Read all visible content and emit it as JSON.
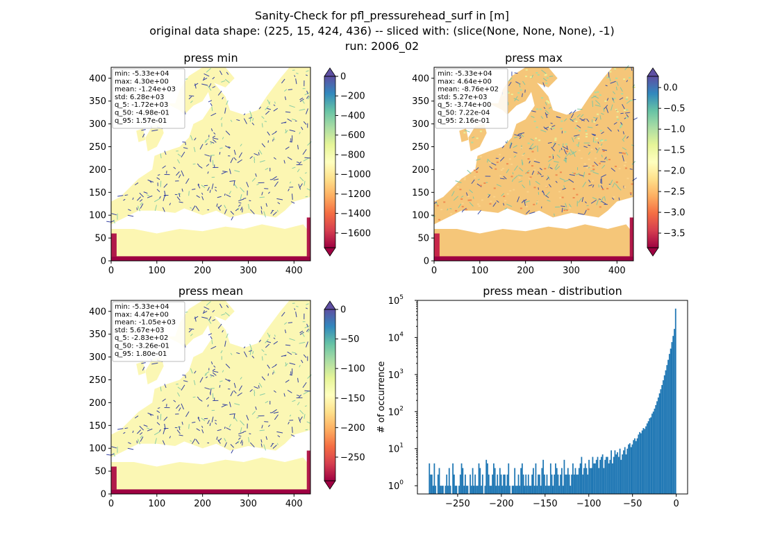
{
  "figure": {
    "title_lines": [
      "Sanity-Check for pfl_pressurehead_surf in [m]",
      "original data shape: (225, 15, 424, 436) -- sliced with: (slice(None, None, None), -1)",
      "run: 2006_02"
    ]
  },
  "chart_data": [
    {
      "type": "heatmap",
      "title": "press min",
      "xlim": [
        0,
        436
      ],
      "ylim": [
        0,
        424
      ],
      "xticks": [
        0,
        100,
        200,
        300,
        400
      ],
      "yticks": [
        0,
        50,
        100,
        150,
        200,
        250,
        300,
        350,
        400
      ],
      "stats": [
        "min: -5.33e+04",
        "max: 4.30e+00",
        "mean: -1.24e+03",
        "std: 6.28e+03",
        "q_5: -1.72e+03",
        "q_50: -4.98e-01",
        "q_95: 1.57e-01"
      ],
      "colorbar": {
        "cmap": "Spectral",
        "vmin": -1750,
        "vmax": 0,
        "ticks": [
          0,
          -200,
          -400,
          -600,
          -800,
          -1000,
          -1200,
          -1400,
          -1600
        ],
        "tick_labels": [
          "0",
          "−200",
          "−400",
          "−600",
          "−800",
          "−1000",
          "−1200",
          "−1400",
          "−1600"
        ],
        "extend": "both"
      }
    },
    {
      "type": "heatmap",
      "title": "press max",
      "xlim": [
        0,
        436
      ],
      "ylim": [
        0,
        424
      ],
      "xticks": [
        0,
        100,
        200,
        300,
        400
      ],
      "yticks": [
        0,
        50,
        100,
        150,
        200,
        250,
        300,
        350,
        400
      ],
      "stats": [
        "min: -5.33e+04",
        "max: 4.64e+00",
        "mean: -8.76e+02",
        "std: 5.27e+03",
        "q_5: -3.74e+00",
        "q_50: 7.22e-04",
        "q_95: 2.16e-01"
      ],
      "colorbar": {
        "cmap": "Spectral",
        "vmin": -3.85,
        "vmax": 0.27,
        "ticks": [
          0.0,
          -0.5,
          -1.0,
          -1.5,
          -2.0,
          -2.5,
          -3.0,
          -3.5
        ],
        "tick_labels": [
          "0.0",
          "−0.5",
          "−1.0",
          "−1.5",
          "−2.0",
          "−2.5",
          "−3.0",
          "−3.5"
        ],
        "extend": "both"
      }
    },
    {
      "type": "heatmap",
      "title": "press mean",
      "xlim": [
        0,
        436
      ],
      "ylim": [
        0,
        424
      ],
      "xticks": [
        0,
        100,
        200,
        300,
        400
      ],
      "yticks": [
        0,
        50,
        100,
        150,
        200,
        250,
        300,
        350,
        400
      ],
      "stats": [
        "min: -5.33e+04",
        "max: 4.47e+00",
        "mean: -1.05e+03",
        "std: 5.67e+03",
        "q_5: -2.83e+02",
        "q_50: -3.26e-01",
        "q_95: 1.80e-01"
      ],
      "colorbar": {
        "cmap": "Spectral",
        "vmin": -290,
        "vmax": 0,
        "ticks": [
          0,
          -50,
          -100,
          -150,
          -200,
          -250
        ],
        "tick_labels": [
          "0",
          "−50",
          "−100",
          "−150",
          "−200",
          "−250"
        ],
        "extend": "both"
      }
    },
    {
      "type": "bar",
      "title": "press mean - distribution",
      "xlabel": "",
      "ylabel": "# of occurrence",
      "yscale": "log",
      "xlim": [
        -296,
        13
      ],
      "ylim": [
        0.6,
        100000
      ],
      "xticks": [
        -250,
        -200,
        -150,
        -100,
        -50,
        0
      ],
      "xtick_labels": [
        "−250",
        "−200",
        "−150",
        "−100",
        "−50",
        "0"
      ],
      "yticks": [
        1,
        10,
        100,
        1000,
        10000,
        100000
      ],
      "ytick_labels": [
        "10^0",
        "10^1",
        "10^2",
        "10^3",
        "10^4",
        "10^5"
      ],
      "bar_color": "#1f77b4",
      "bin_range": [
        -283,
        0
      ],
      "bin_count": 200,
      "counts": [
        4,
        2,
        2,
        1,
        4,
        1,
        0,
        2,
        3,
        1,
        1,
        1,
        0,
        1,
        2,
        1,
        3,
        1,
        0,
        4,
        2,
        1,
        1,
        0,
        1,
        2,
        4,
        3,
        1,
        2,
        1,
        1,
        0,
        2,
        1,
        3,
        1,
        2,
        1,
        1,
        4,
        3,
        1,
        2,
        0,
        1,
        5,
        4,
        2,
        1,
        1,
        2,
        4,
        3,
        1,
        2,
        1,
        3,
        2,
        1,
        2,
        2,
        1,
        2,
        4,
        1,
        0,
        1,
        1,
        3,
        1,
        1,
        2,
        1,
        3,
        4,
        2,
        1,
        2,
        1,
        2,
        1,
        1,
        2,
        3,
        1,
        4,
        1,
        2,
        2,
        1,
        3,
        5,
        2,
        1,
        2,
        1,
        1,
        4,
        2,
        1,
        2,
        4,
        3,
        2,
        1,
        2,
        3,
        1,
        5,
        2,
        2,
        3,
        2,
        1,
        2,
        4,
        2,
        3,
        2,
        2,
        3,
        4,
        6,
        2,
        3,
        4,
        3,
        2,
        5,
        3,
        3,
        6,
        4,
        4,
        5,
        6,
        3,
        5,
        6,
        7,
        3,
        5,
        6,
        6,
        4,
        5,
        9,
        4,
        6,
        9,
        7,
        8,
        6,
        10,
        5,
        7,
        9,
        11,
        7,
        10,
        13,
        14,
        11,
        13,
        17,
        19,
        16,
        19,
        24,
        28,
        26,
        31,
        36,
        34,
        40,
        48,
        55,
        66,
        70,
        88,
        100,
        120,
        150,
        190,
        240,
        310,
        400,
        520,
        700,
        950,
        1300,
        1800,
        2500,
        3600,
        5000,
        7500,
        11000,
        17000,
        60000
      ]
    }
  ]
}
